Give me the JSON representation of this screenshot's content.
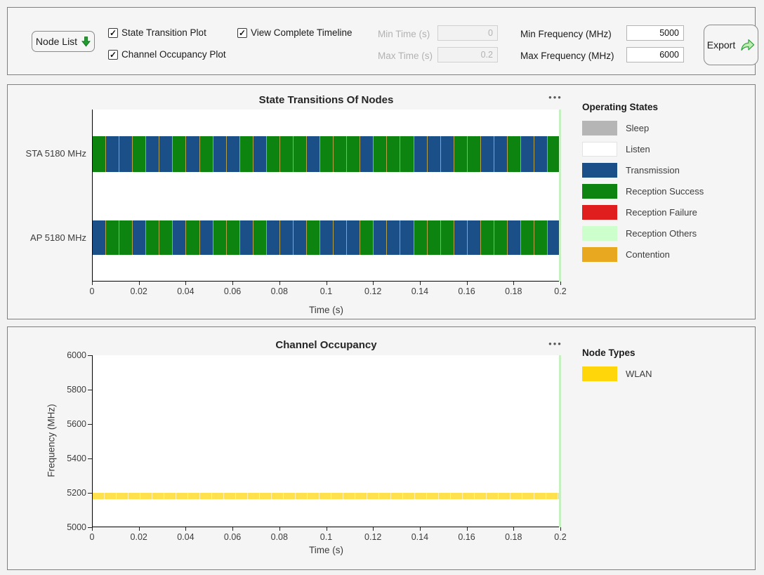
{
  "colors": {
    "page_bg": "#f2f2f2",
    "panel_bg": "#f5f5f5",
    "panel_border": "#7f7f7f",
    "cursor_line": "#c6f0c2",
    "segment_edge": "#b3a14e",
    "band_fill": "#ffe14d"
  },
  "icons": {
    "node_list_dropdown": "down-arrow",
    "export": "share-arrow",
    "chart_menu": "•••",
    "checkbox_check": "✓"
  },
  "toolbar": {
    "node_list_label": "Node List",
    "checkboxes": [
      {
        "label": "State Transition Plot",
        "checked": true
      },
      {
        "label": "Channel Occupancy Plot",
        "checked": true
      },
      {
        "label": "View Complete Timeline",
        "checked": true
      }
    ],
    "fields": [
      {
        "label": "Min Time (s)",
        "value": "0",
        "disabled": true
      },
      {
        "label": "Max Time (s)",
        "value": "0.2",
        "disabled": true
      },
      {
        "label": "Min Frequency (MHz)",
        "value": "5000",
        "disabled": false
      },
      {
        "label": "Max Frequency (MHz)",
        "value": "6000",
        "disabled": false
      }
    ],
    "export_label": "Export"
  },
  "chart_data": [
    {
      "type": "timeline",
      "title": "State Transitions Of Nodes",
      "xlabel": "Time (s)",
      "xlim": [
        0,
        0.2
      ],
      "xtick_labels": [
        "0",
        "0.02",
        "0.04",
        "0.06",
        "0.08",
        "0.1",
        "0.12",
        "0.14",
        "0.16",
        "0.18",
        "0.2"
      ],
      "cursor_time": 0.2,
      "legend_title": "Operating States",
      "legend": [
        {
          "label": "Sleep",
          "color": "#b5b5b5"
        },
        {
          "label": "Listen",
          "color": "#ffffff"
        },
        {
          "label": "Transmission",
          "color": "#1b4f87"
        },
        {
          "label": "Reception Success",
          "color": "#0e8410"
        },
        {
          "label": "Reception Failure",
          "color": "#e01e1e"
        },
        {
          "label": "Reception Others",
          "color": "#ccffcc"
        },
        {
          "label": "Contention",
          "color": "#e8a820"
        }
      ],
      "state_colors": {
        "tx": "#1b4f87",
        "rx": "#0e8410"
      },
      "segment_duration_s": 0.0057,
      "rows": [
        {
          "label": "STA 5180 MHz",
          "pattern": [
            "rx",
            "tx",
            "tx",
            "rx",
            "tx",
            "tx",
            "rx",
            "tx",
            "rx",
            "tx",
            "tx",
            "rx",
            "tx",
            "rx",
            "rx",
            "rx",
            "tx",
            "rx",
            "rx",
            "rx",
            "tx",
            "rx",
            "rx",
            "rx",
            "tx",
            "tx",
            "tx",
            "rx",
            "rx",
            "tx",
            "tx",
            "rx",
            "tx",
            "tx",
            "rx"
          ]
        },
        {
          "label": "AP 5180 MHz",
          "pattern": [
            "tx",
            "rx",
            "rx",
            "tx",
            "rx",
            "rx",
            "tx",
            "rx",
            "tx",
            "rx",
            "rx",
            "tx",
            "rx",
            "tx",
            "tx",
            "tx",
            "rx",
            "tx",
            "tx",
            "tx",
            "rx",
            "tx",
            "tx",
            "tx",
            "rx",
            "rx",
            "rx",
            "tx",
            "tx",
            "rx",
            "rx",
            "tx",
            "rx",
            "rx",
            "tx"
          ]
        }
      ]
    },
    {
      "type": "band-timeline",
      "title": "Channel Occupancy",
      "xlabel": "Time (s)",
      "ylabel": "Frequency (MHz)",
      "xlim": [
        0,
        0.2
      ],
      "ylim": [
        5000,
        6000
      ],
      "xtick_labels": [
        "0",
        "0.02",
        "0.04",
        "0.06",
        "0.08",
        "0.1",
        "0.12",
        "0.14",
        "0.16",
        "0.18",
        "0.2"
      ],
      "ytick_labels": [
        "5000",
        "5200",
        "5400",
        "5600",
        "5800",
        "6000"
      ],
      "cursor_time": 0.2,
      "legend_title": "Node Types",
      "legend": [
        {
          "label": "WLAN",
          "color": "#ffd60a"
        }
      ],
      "bands": [
        {
          "node_type": "WLAN",
          "freq_range_mhz": [
            5170,
            5190
          ],
          "time_range_s": [
            0,
            0.2
          ],
          "color": "#ffe14d"
        }
      ]
    }
  ]
}
